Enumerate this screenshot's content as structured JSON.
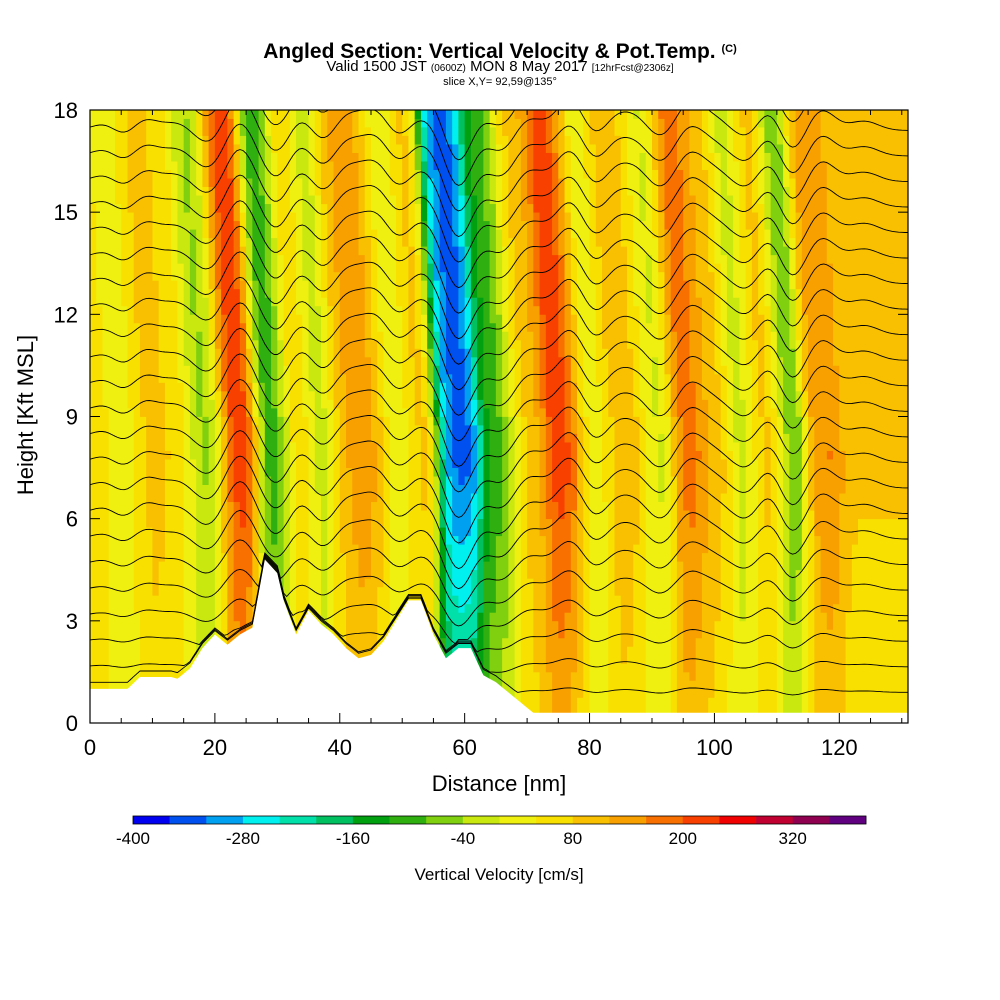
{
  "header": {
    "title_main": "Angled Section: Vertical Velocity & Pot.Temp.",
    "title_mark": "(C)",
    "subtitle_pre": "Valid 1500 JST",
    "subtitle_utc": "(0600Z)",
    "subtitle_mid": "MON 8 May 2017",
    "subtitle_fcst": "[12hrFcst@2306z]",
    "slice": "slice X,Y= 92,59@135°"
  },
  "chart_data": {
    "type": "heatmap",
    "title": "Angled Section: Vertical Velocity & Pot.Temp.",
    "xlabel": "Distance [nm]",
    "ylabel": "Height [Kft MSL]",
    "xlim": [
      0,
      131
    ],
    "ylim": [
      0,
      18
    ],
    "x_ticks": [
      0,
      20,
      40,
      60,
      80,
      100,
      120
    ],
    "y_ticks": [
      0,
      3,
      6,
      9,
      12,
      15,
      18
    ],
    "variable": "Vertical Velocity [cm/s]",
    "overlay": "Pot.Temp. contours (K)",
    "colorbar": {
      "label": "Vertical Velocity [cm/s]",
      "tick_labels": [
        "-400",
        "-280",
        "-160",
        "-40",
        "80",
        "200",
        "320"
      ],
      "levels": [
        -400,
        -360,
        -320,
        -280,
        -240,
        -200,
        -160,
        -120,
        -80,
        -40,
        0,
        40,
        80,
        120,
        160,
        200,
        240,
        280,
        320,
        360
      ],
      "colors": [
        "#0000f0",
        "#0050f0",
        "#00a0f0",
        "#00f0f0",
        "#00e0a8",
        "#00c060",
        "#00a010",
        "#30b010",
        "#80d010",
        "#c8e810",
        "#f0f010",
        "#f8e000",
        "#f8c000",
        "#f8a000",
        "#f87000",
        "#f84000",
        "#f00000",
        "#c00030",
        "#900050",
        "#600080"
      ]
    },
    "updrafts_cm_s": [
      {
        "x": 3,
        "value": 60
      },
      {
        "x": 8,
        "value": 120
      },
      {
        "x": 14,
        "value": 50
      },
      {
        "x": 24,
        "value": 220
      },
      {
        "x": 34,
        "value": 130
      },
      {
        "x": 41,
        "value": 110
      },
      {
        "x": 46,
        "value": 150
      },
      {
        "x": 53,
        "value": 90
      },
      {
        "x": 70,
        "value": 90
      },
      {
        "x": 77,
        "value": 210
      },
      {
        "x": 84,
        "value": 110
      },
      {
        "x": 88,
        "value": 90
      },
      {
        "x": 96,
        "value": 180
      },
      {
        "x": 100,
        "value": 70
      },
      {
        "x": 109,
        "value": 200
      },
      {
        "x": 117,
        "value": 140
      },
      {
        "x": 124,
        "value": 60
      }
    ],
    "downdrafts_cm_s": [
      {
        "x": 6,
        "value": -110
      },
      {
        "x": 19,
        "value": -90
      },
      {
        "x": 30,
        "value": -160
      },
      {
        "x": 37,
        "value": -120
      },
      {
        "x": 49,
        "value": -90
      },
      {
        "x": 59,
        "value": -360
      },
      {
        "x": 66,
        "value": -140
      },
      {
        "x": 81,
        "value": -90
      },
      {
        "x": 91,
        "value": -80
      },
      {
        "x": 106,
        "value": -80
      },
      {
        "x": 112,
        "value": -190
      }
    ]
  }
}
